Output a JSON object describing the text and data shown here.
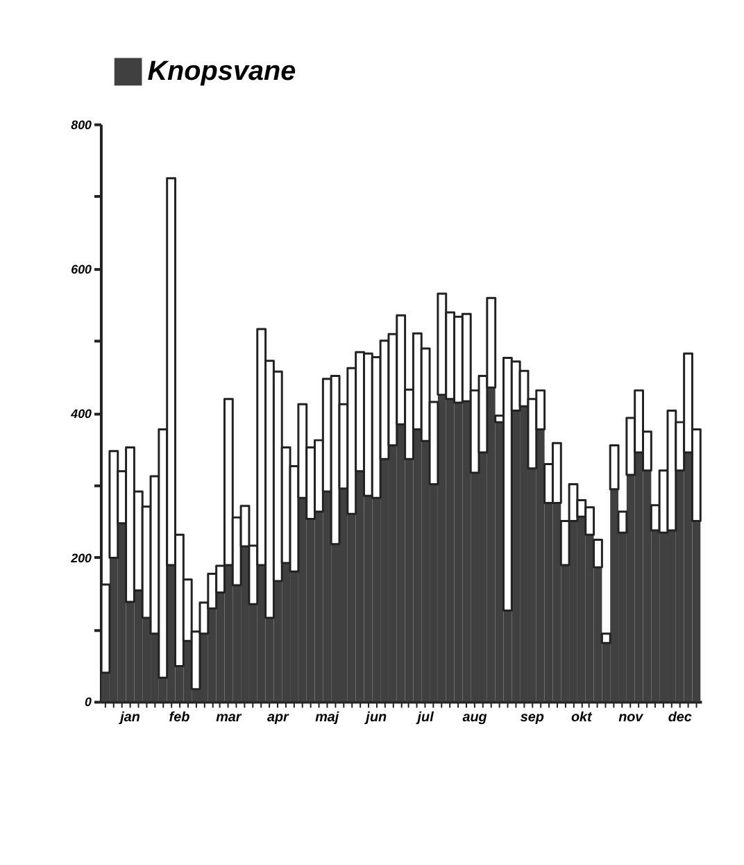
{
  "chart_data": {
    "type": "bar",
    "stacked": true,
    "legend": "top",
    "grid": false,
    "categories": [
      null,
      null,
      null,
      "jan",
      null,
      null,
      null,
      null,
      null,
      "feb",
      null,
      null,
      null,
      null,
      null,
      "mar",
      null,
      null,
      null,
      null,
      null,
      "apr",
      null,
      null,
      null,
      null,
      null,
      "maj",
      null,
      null,
      null,
      null,
      null,
      "jun",
      null,
      null,
      null,
      null,
      null,
      "jul",
      null,
      null,
      null,
      null,
      null,
      "aug",
      null,
      null,
      null,
      null,
      null,
      null,
      "sep",
      null,
      null,
      null,
      null,
      null,
      "okt",
      null,
      null,
      null,
      null,
      null,
      "nov",
      null,
      null,
      null,
      null,
      null,
      "dec",
      null,
      null
    ],
    "ylim": [
      0,
      800
    ],
    "yticks": [
      0,
      {
        "value": 100,
        "label": null
      },
      200,
      {
        "value": 300,
        "label": null
      },
      400,
      {
        "value": 500,
        "label": null
      },
      600,
      {
        "value": 700,
        "label": null
      },
      800
    ],
    "series": [
      {
        "name": "Knopsvane",
        "color": "#404040",
        "values": [
          40,
          199,
          247,
          138,
          154,
          116,
          94,
          33,
          189,
          49,
          84,
          17,
          94,
          129,
          151,
          189,
          161,
          215,
          135,
          189,
          116,
          167,
          192,
          180,
          282,
          253,
          263,
          291,
          218,
          295,
          260,
          319,
          285,
          282,
          336,
          355,
          384,
          336,
          377,
          361,
          301,
          425,
          419,
          414,
          416,
          317,
          345,
          435,
          387,
          126,
          403,
          409,
          323,
          377,
          275,
          275,
          189,
          250,
          256,
          231,
          186,
          81,
          294,
          234,
          314,
          345,
          320,
          237,
          234,
          237,
          320,
          345,
          250
        ]
      },
      {
        "color": "#ffffff",
        "values": [
          122,
          148,
          72,
          214,
          137,
          154,
          218,
          344,
          536,
          182,
          85,
          80,
          43,
          48,
          37,
          230,
          94,
          56,
          81,
          327,
          356,
          290,
          160,
          146,
          130,
          99,
          99,
          156,
          233,
          117,
          202,
          165,
          197,
          195,
          164,
          154,
          151,
          96,
          133,
          128,
          114,
          140,
          120,
          119,
          121,
          114,
          106,
          124,
          9,
          350,
          68,
          49,
          96,
          54,
          54,
          83,
          61,
          51,
          23,
          38,
          38,
          13,
          61,
          29,
          79,
          86,
          54,
          35,
          86,
          166,
          67,
          137,
          127
        ]
      }
    ]
  }
}
